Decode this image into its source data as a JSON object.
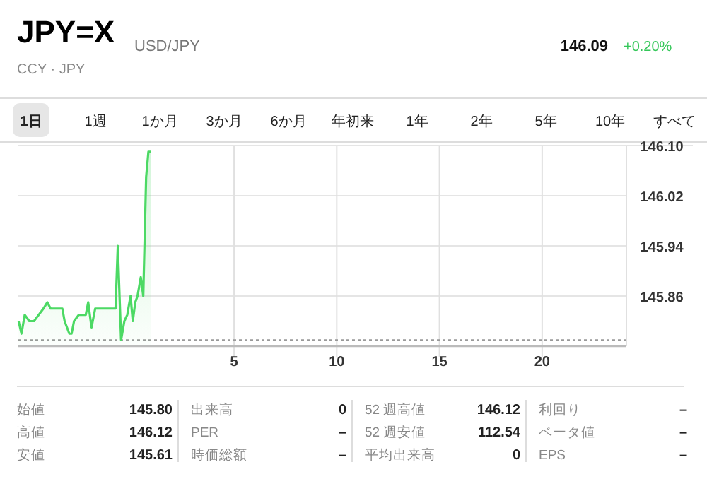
{
  "chart_data": {
    "type": "area",
    "title": "JPY=X",
    "subtitle": "USD/JPY",
    "annotations": [
      "CCY · JPY",
      "146.09",
      "+0.20%",
      "1日",
      "1週",
      "1か月",
      "3か月",
      "6か月",
      "年初来",
      "1年",
      "2年",
      "5年",
      "10年",
      "すべて",
      "始値",
      "145.80",
      "高値",
      "146.12",
      "安値",
      "145.61",
      "出来高",
      "0",
      "PER",
      "–",
      "時価総額",
      "–",
      "52 週高値",
      "146.12",
      "52 週安値",
      "112.54",
      "平均出来高",
      "0",
      "利回り",
      "–",
      "ベータ値",
      "–",
      "EPS",
      "–"
    ],
    "x": [
      -5.49,
      -5.35,
      -5.19,
      -4.97,
      -4.74,
      -4.51,
      -4.28,
      -4.09,
      -3.93,
      -3.71,
      -3.48,
      -3.36,
      -3.25,
      -3.02,
      -2.91,
      -2.79,
      -2.56,
      -2.22,
      -2.1,
      -1.94,
      -1.76,
      -1.48,
      -1.35,
      -1.19,
      -1.03,
      -0.77,
      -0.66,
      -0.5,
      -0.34,
      -0.2,
      -0.04,
      0.07,
      0.19,
      0.3,
      0.46,
      0.58,
      0.72,
      0.83,
      0.95
    ],
    "series": [
      {
        "color": "#4cd964",
        "values": [
          145.82,
          145.8,
          145.83,
          145.82,
          145.82,
          145.83,
          145.84,
          145.85,
          145.84,
          145.84,
          145.84,
          145.84,
          145.82,
          145.8,
          145.8,
          145.82,
          145.83,
          145.83,
          145.85,
          145.81,
          145.84,
          145.84,
          145.84,
          145.84,
          145.84,
          145.84,
          145.94,
          145.79,
          145.82,
          145.83,
          145.86,
          145.82,
          145.85,
          145.86,
          145.89,
          145.86,
          146.05,
          146.09,
          146.09
        ]
      }
    ],
    "xlim": [
      -5.5,
      24.1
    ],
    "xticks": [
      5,
      10,
      15,
      20
    ],
    "ylim": [
      145.78,
      146.1
    ],
    "yticks": [
      145.86,
      145.94,
      146.02,
      {
        "value": 146.1,
        "label": "146.10"
      }
    ],
    "ref_lines": [
      {
        "axis": "y",
        "value": 145.79,
        "color": "#999999",
        "line_style": "dotted"
      }
    ],
    "grid": true
  }
}
